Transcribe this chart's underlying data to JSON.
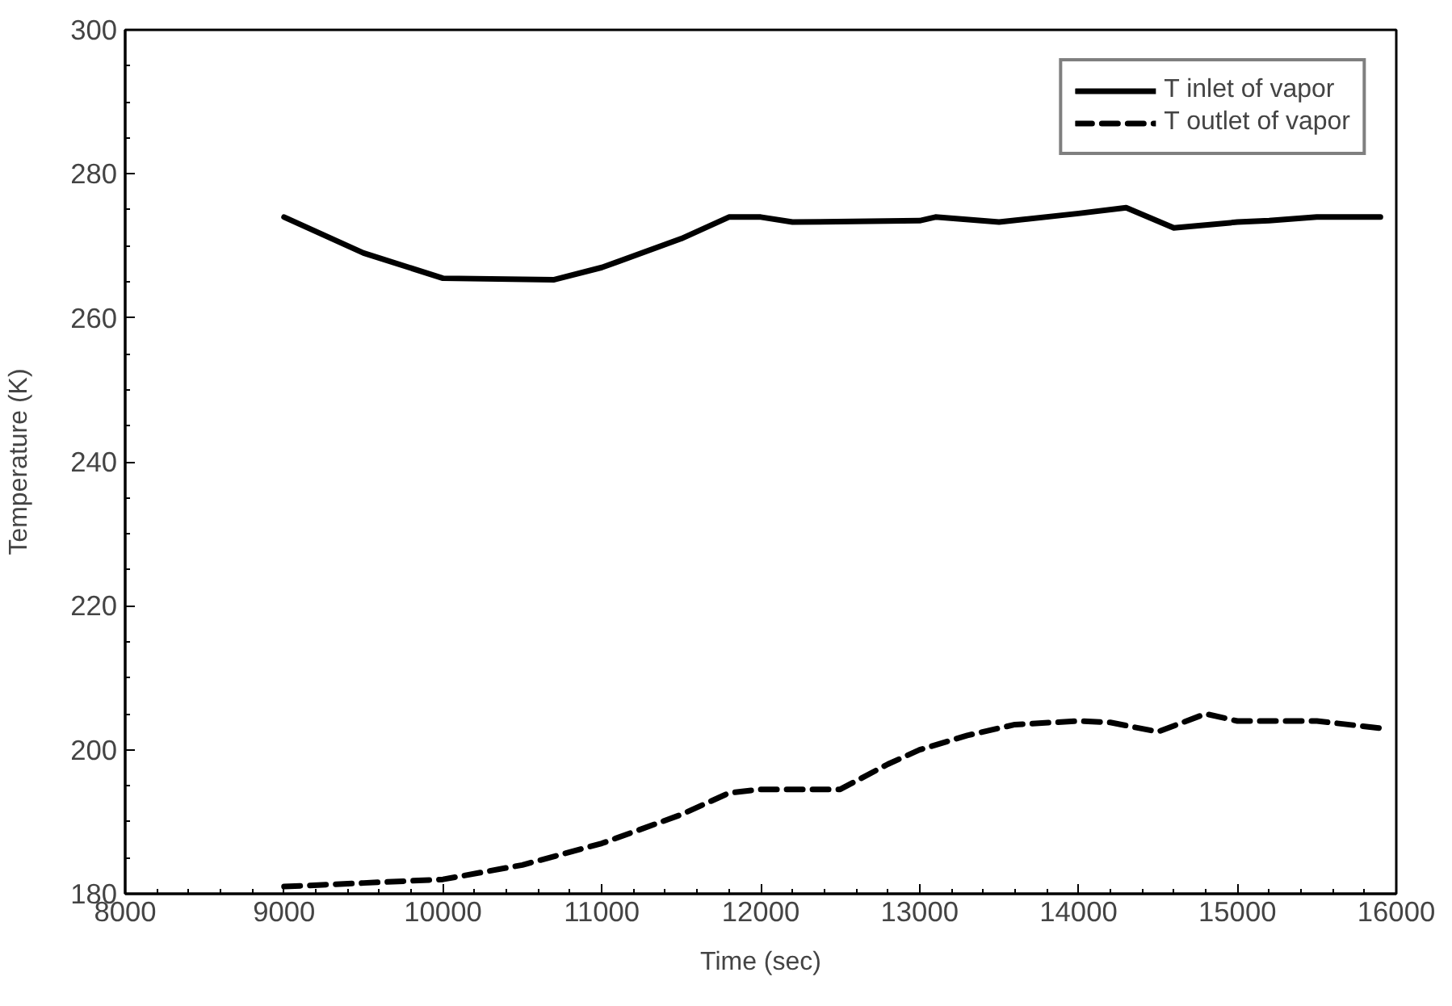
{
  "chart_data": {
    "type": "line",
    "xlabel": "Time (sec)",
    "ylabel": "Temperature (K)",
    "xlim": [
      8000,
      16000
    ],
    "ylim": [
      180,
      300
    ],
    "xticks": [
      8000,
      9000,
      10000,
      11000,
      12000,
      13000,
      14000,
      15000,
      16000
    ],
    "yticks": [
      180,
      200,
      220,
      240,
      260,
      280,
      300
    ],
    "grid": false,
    "legend": "top right",
    "marker": "none",
    "series": [
      {
        "name": "T inlet of vapor",
        "color": "#000000",
        "line_style": "solid",
        "x": [
          9000,
          9500,
          10000,
          10700,
          11000,
          11500,
          11800,
          12000,
          12200,
          13000,
          13100,
          13500,
          14000,
          14300,
          14600,
          15000,
          15200,
          15500,
          15900
        ],
        "values": [
          274,
          269,
          265.5,
          265.3,
          267,
          271,
          274,
          274,
          273.3,
          273.5,
          274,
          273.3,
          274.5,
          275.3,
          272.5,
          273.3,
          273.5,
          274,
          274
        ]
      },
      {
        "name": "T outlet of vapor",
        "color": "#000000",
        "line_style": "dashed",
        "x": [
          9000,
          9500,
          10000,
          10500,
          11000,
          11500,
          11800,
          12000,
          12500,
          12800,
          13000,
          13300,
          13600,
          14000,
          14200,
          14500,
          14800,
          15000,
          15500,
          15900
        ],
        "values": [
          181,
          181.5,
          182,
          184,
          187,
          191,
          194,
          194.5,
          194.5,
          198,
          200,
          202,
          203.5,
          204,
          203.8,
          202.5,
          205,
          204,
          204,
          203
        ]
      }
    ]
  }
}
